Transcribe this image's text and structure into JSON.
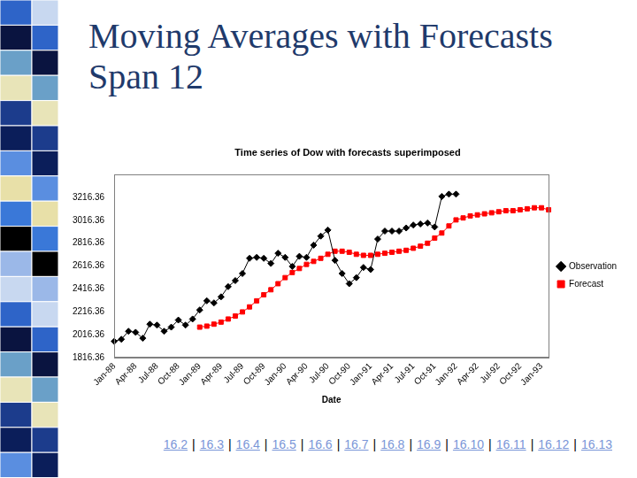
{
  "slide": {
    "title": "Moving Averages with Forecasts Span 12",
    "links": [
      "16.2",
      "16.3",
      "16.4",
      "16.5",
      "16.6",
      "16.7",
      "16.8",
      "16.9",
      "16.10",
      "16.11",
      "16.12",
      "16.13"
    ],
    "separator": "|"
  },
  "chart_data": {
    "type": "line",
    "title": "Time series of Dow with forecasts superimposed",
    "xlabel": "Date",
    "categories": [
      "Jan-88",
      null,
      null,
      "Apr-88",
      null,
      null,
      "Jul-88",
      null,
      null,
      "Oct-88",
      null,
      null,
      "Jan-89",
      null,
      null,
      "Apr-89",
      null,
      null,
      "Jul-89",
      null,
      null,
      "Oct-89",
      null,
      null,
      "Jan-90",
      null,
      null,
      "Apr-90",
      null,
      null,
      "Jul-90",
      null,
      null,
      "Oct-90",
      null,
      null,
      "Jan-91",
      null,
      null,
      "Apr-91",
      null,
      null,
      "Jul-91",
      null,
      null,
      "Oct-91",
      null,
      null,
      "Jan-92",
      null,
      null,
      "Apr-92",
      null,
      null,
      "Jul-92",
      null,
      null,
      "Oct-92",
      null,
      null,
      "Jan-93",
      null
    ],
    "series": [
      {
        "name": "Observation",
        "color": "#000000",
        "marker": "diamond",
        "line_style": "solid",
        "values": [
          1958,
          1976,
          2046,
          2037,
          1985,
          2108,
          2100,
          2046,
          2082,
          2144,
          2100,
          2153,
          2232,
          2312,
          2294,
          2347,
          2436,
          2489,
          2551,
          2684,
          2692,
          2684,
          2639,
          2728,
          2692,
          2613,
          2701,
          2692,
          2799,
          2878,
          2931,
          2666,
          2551,
          2462,
          2515,
          2604,
          2586,
          2852,
          2922,
          2922,
          2922,
          2949,
          2975,
          2984,
          2993,
          2958,
          3225,
          3245,
          3245,
          null,
          null,
          null,
          null,
          null,
          null,
          null,
          null,
          null,
          null,
          null,
          null,
          null
        ]
      },
      {
        "name": "Forecast",
        "color": "#ff0000",
        "marker": "square",
        "line_style": "solid",
        "values": [
          null,
          null,
          null,
          null,
          null,
          null,
          null,
          null,
          null,
          null,
          null,
          null,
          2082,
          2091,
          2108,
          2126,
          2153,
          2179,
          2215,
          2259,
          2312,
          2365,
          2409,
          2462,
          2515,
          2560,
          2595,
          2631,
          2657,
          2684,
          2719,
          2746,
          2746,
          2737,
          2719,
          2710,
          2710,
          2719,
          2728,
          2737,
          2746,
          2754,
          2772,
          2790,
          2816,
          2861,
          2905,
          2967,
          3020,
          3037,
          3055,
          3064,
          3073,
          3082,
          3091,
          3100,
          3100,
          3108,
          3117,
          3126,
          3126,
          3108
        ]
      }
    ],
    "ylim": [
      1816.36,
      3416.36
    ],
    "yticks": [
      1816.36,
      2016.36,
      2216.36,
      2416.36,
      2616.36,
      2816.36,
      3016.36,
      3216.36
    ],
    "grid": false,
    "legend": "right"
  }
}
